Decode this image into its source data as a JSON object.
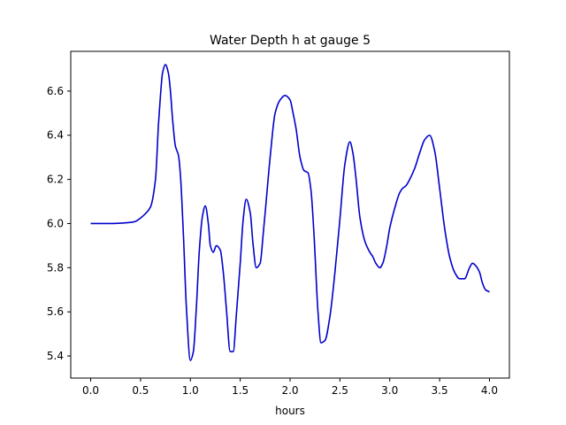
{
  "chart_data": {
    "type": "line",
    "title": "Water Depth h at gauge 5",
    "xlabel": "hours",
    "ylabel": "",
    "xlim": [
      -0.2,
      4.2
    ],
    "ylim": [
      5.3,
      6.78
    ],
    "grid": false,
    "legend": false,
    "line_color": "#0000cc",
    "x_ticks": [
      0.0,
      0.5,
      1.0,
      1.5,
      2.0,
      2.5,
      3.0,
      3.5,
      4.0
    ],
    "x_tick_labels": [
      "0.0",
      "0.5",
      "1.0",
      "1.5",
      "2.0",
      "2.5",
      "3.0",
      "3.5",
      "4.0"
    ],
    "y_ticks": [
      5.4,
      5.6,
      5.8,
      6.0,
      6.2,
      6.4,
      6.6
    ],
    "y_tick_labels": [
      "5.4",
      "5.6",
      "5.8",
      "6.0",
      "6.2",
      "6.4",
      "6.6"
    ],
    "series": [
      {
        "x": [
          0.0,
          0.2,
          0.4,
          0.45,
          0.5,
          0.55,
          0.6,
          0.65,
          0.68,
          0.7,
          0.72,
          0.75,
          0.78,
          0.8,
          0.82,
          0.85,
          0.88,
          0.9,
          0.93,
          0.96,
          1.0,
          1.03,
          1.06,
          1.09,
          1.12,
          1.15,
          1.18,
          1.2,
          1.23,
          1.26,
          1.3,
          1.33,
          1.36,
          1.4,
          1.43,
          1.46,
          1.5,
          1.53,
          1.56,
          1.6,
          1.63,
          1.66,
          1.7,
          1.73,
          1.76,
          1.8,
          1.85,
          1.9,
          1.95,
          2.0,
          2.03,
          2.06,
          2.1,
          2.14,
          2.18,
          2.21,
          2.24,
          2.28,
          2.31,
          2.35,
          2.4,
          2.45,
          2.5,
          2.55,
          2.6,
          2.63,
          2.66,
          2.7,
          2.75,
          2.8,
          2.83,
          2.86,
          2.9,
          2.93,
          2.97,
          3.0,
          3.05,
          3.1,
          3.13,
          3.16,
          3.2,
          3.25,
          3.3,
          3.35,
          3.4,
          3.45,
          3.5,
          3.55,
          3.6,
          3.65,
          3.7,
          3.75,
          3.8,
          3.83,
          3.86,
          3.9,
          3.93,
          3.96,
          4.0
        ],
        "y": [
          6.0,
          6.0,
          6.005,
          6.01,
          6.025,
          6.045,
          6.075,
          6.2,
          6.45,
          6.58,
          6.68,
          6.72,
          6.68,
          6.6,
          6.48,
          6.35,
          6.31,
          6.22,
          5.95,
          5.62,
          5.38,
          5.42,
          5.62,
          5.88,
          6.03,
          6.08,
          6.0,
          5.9,
          5.87,
          5.9,
          5.88,
          5.78,
          5.62,
          5.42,
          5.42,
          5.58,
          5.82,
          6.02,
          6.11,
          6.05,
          5.9,
          5.8,
          5.82,
          5.95,
          6.1,
          6.3,
          6.5,
          6.56,
          6.58,
          6.56,
          6.5,
          6.43,
          6.3,
          6.24,
          6.23,
          6.15,
          5.95,
          5.6,
          5.46,
          5.47,
          5.58,
          5.78,
          6.02,
          6.27,
          6.37,
          6.32,
          6.21,
          6.03,
          5.92,
          5.87,
          5.85,
          5.82,
          5.8,
          5.82,
          5.9,
          5.98,
          6.07,
          6.14,
          6.16,
          6.17,
          6.2,
          6.25,
          6.32,
          6.38,
          6.4,
          6.33,
          6.16,
          5.98,
          5.85,
          5.78,
          5.75,
          5.75,
          5.8,
          5.82,
          5.81,
          5.78,
          5.73,
          5.7,
          5.69
        ]
      }
    ]
  }
}
